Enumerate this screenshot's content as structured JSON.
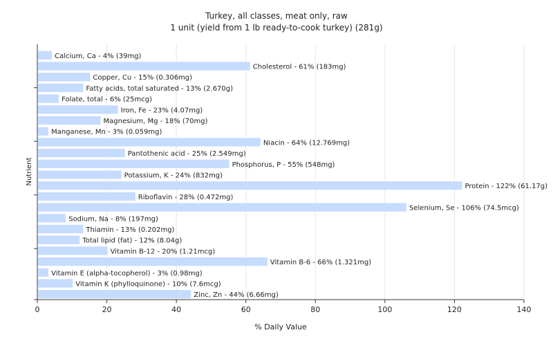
{
  "chart_data": {
    "type": "bar",
    "orientation": "horizontal",
    "title": "Turkey, all classes, meat only, raw",
    "subtitle": "1 unit (yield from 1 lb ready-to-cook turkey) (281g)",
    "xlabel": "% Daily Value",
    "ylabel": "Nutrient",
    "xlim": [
      0,
      140
    ],
    "xticks": [
      "0",
      "20",
      "40",
      "60",
      "80",
      "100",
      "120",
      "140"
    ],
    "grid": true,
    "bar_color": "#c6dcff",
    "categories": [
      "Calcium, Ca",
      "Cholesterol",
      "Copper, Cu",
      "Fatty acids, total saturated",
      "Folate, total",
      "Iron, Fe",
      "Magnesium, Mg",
      "Manganese, Mn",
      "Niacin",
      "Pantothenic acid",
      "Phosphorus, P",
      "Potassium, K",
      "Protein",
      "Riboflavin",
      "Selenium, Se",
      "Sodium, Na",
      "Thiamin",
      "Total lipid (fat)",
      "Vitamin B-12",
      "Vitamin B-6",
      "Vitamin E (alpha-tocopherol)",
      "Vitamin K (phylloquinone)",
      "Zinc, Zn"
    ],
    "values": [
      4,
      61,
      15,
      13,
      6,
      23,
      18,
      3,
      64,
      25,
      55,
      24,
      122,
      28,
      106,
      8,
      13,
      12,
      20,
      66,
      3,
      10,
      44
    ],
    "labels": [
      "Calcium, Ca - 4% (39mg)",
      "Cholesterol - 61% (183mg)",
      "Copper, Cu - 15% (0.306mg)",
      "Fatty acids, total saturated - 13% (2.670g)",
      "Folate, total - 6% (25mcg)",
      "Iron, Fe - 23% (4.07mg)",
      "Magnesium, Mg - 18% (70mg)",
      "Manganese, Mn - 3% (0.059mg)",
      "Niacin - 64% (12.769mg)",
      "Pantothenic acid - 25% (2.549mg)",
      "Phosphorus, P - 55% (548mg)",
      "Potassium, K - 24% (832mg)",
      "Protein - 122% (61.17g)",
      "Riboflavin - 28% (0.472mg)",
      "Selenium, Se - 106% (74.5mcg)",
      "Sodium, Na - 8% (197mg)",
      "Thiamin - 13% (0.202mg)",
      "Total lipid (fat) - 12% (8.04g)",
      "Vitamin B-12 - 20% (1.21mcg)",
      "Vitamin B-6 - 66% (1.321mg)",
      "Vitamin E (alpha-tocopherol) - 3% (0.98mg)",
      "Vitamin K (phylloquinone) - 10% (7.6mcg)",
      "Zinc, Zn - 44% (6.66mg)"
    ]
  }
}
